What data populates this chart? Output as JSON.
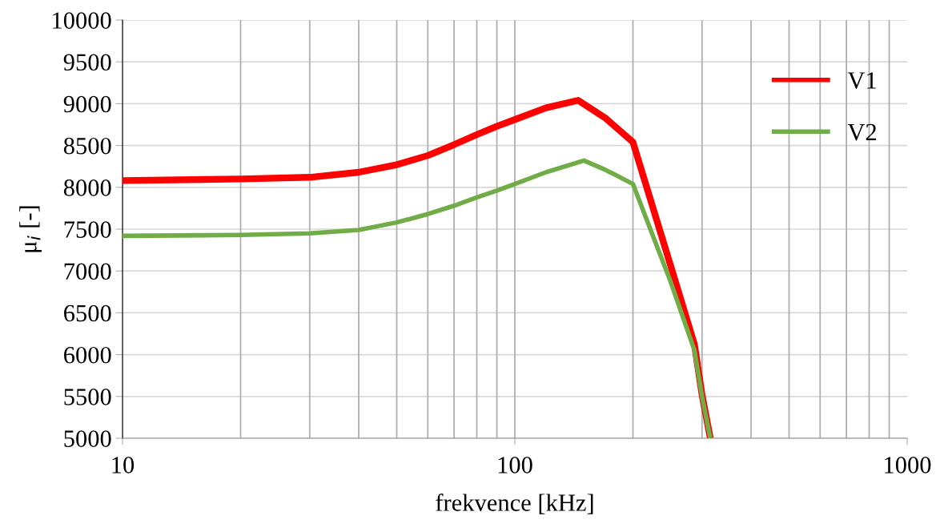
{
  "chart_data": {
    "type": "line",
    "xlabel": "frekvence [kHz]",
    "ylabel": "μ$_{i}$ [-]",
    "log": "x",
    "xlim": [
      10,
      1000
    ],
    "xticks": [
      10,
      100,
      1000
    ],
    "ylim": [
      5000,
      10000
    ],
    "yticks": [
      5000,
      5500,
      6000,
      6500,
      7000,
      7500,
      8000,
      8500,
      9000,
      9500,
      10000
    ],
    "grid": true,
    "legend": "top right",
    "marker": "none",
    "line_style": "solid",
    "series": [
      {
        "name": "V1",
        "color": "#ff0000",
        "x": [
          10,
          20,
          30,
          40,
          50,
          60,
          70,
          80,
          90,
          100,
          120,
          145,
          170,
          200,
          250,
          287,
          300,
          315
        ],
        "values": [
          8080,
          8100,
          8120,
          8180,
          8270,
          8380,
          8510,
          8630,
          8730,
          8810,
          8950,
          9040,
          8830,
          8540,
          7050,
          6120,
          5520,
          5000
        ]
      },
      {
        "name": "V2",
        "color": "#70ad47",
        "x": [
          10,
          20,
          30,
          40,
          50,
          60,
          70,
          80,
          90,
          100,
          120,
          150,
          170,
          200,
          250,
          287,
          300,
          315
        ],
        "values": [
          7420,
          7430,
          7450,
          7490,
          7580,
          7680,
          7780,
          7880,
          7960,
          8040,
          8180,
          8320,
          8210,
          8040,
          6860,
          6050,
          5500,
          5000
        ]
      }
    ]
  }
}
